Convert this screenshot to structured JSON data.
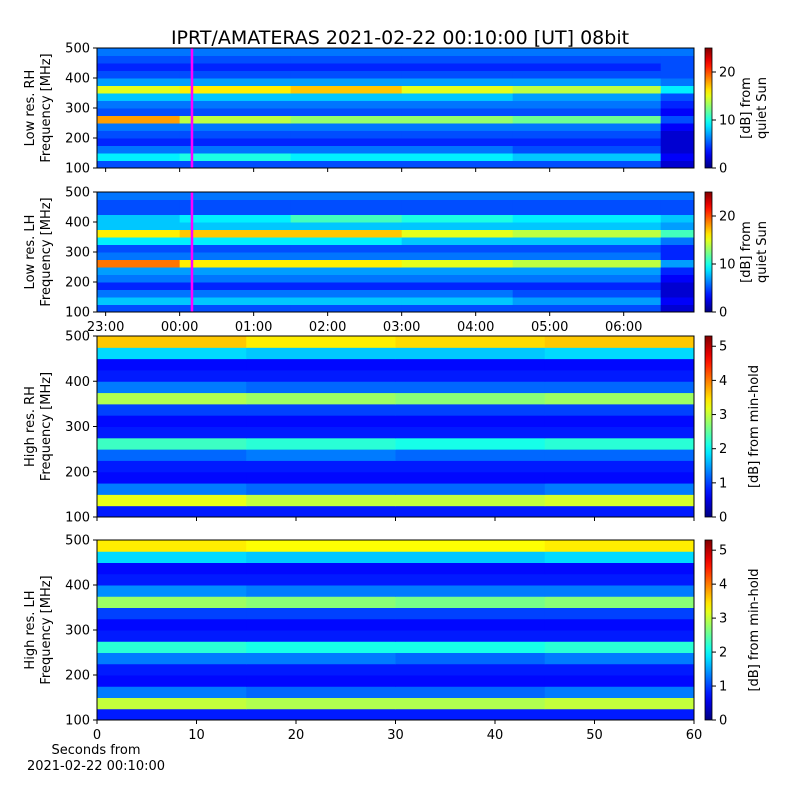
{
  "title": "IPRT/AMATERAS 2021-02-22 00:10:00 [UT]   08bit",
  "chart_data": [
    {
      "type": "heatmap",
      "ylabel": "Low res. RH\nFrequency [MHz]",
      "colorbar_label": "[dB] from\nquiet Sun",
      "colormap": "jet",
      "time_axis": true,
      "xlim": [
        "22:53",
        "06:57"
      ],
      "xticks": [
        "23:00",
        "00:00",
        "01:00",
        "02:00",
        "03:00",
        "04:00",
        "05:00",
        "06:00"
      ],
      "show_xtick_labels": false,
      "ylim": [
        100,
        500
      ],
      "yticks": [
        100,
        200,
        300,
        400,
        500
      ],
      "clim": [
        0,
        25
      ],
      "cticks": [
        0,
        10,
        20
      ],
      "marker_x": "00:10",
      "marker_color": "#ff00ff",
      "x_edges": [
        "22:53",
        "00:00",
        "01:30",
        "03:00",
        "04:30",
        "06:30",
        "06:57"
      ],
      "y_edges": [
        100,
        125,
        150,
        175,
        200,
        225,
        250,
        275,
        300,
        325,
        350,
        375,
        400,
        425,
        450,
        475,
        500
      ],
      "values": [
        [
          5,
          5,
          5,
          5,
          5,
          2
        ],
        [
          9,
          10,
          9,
          9,
          8,
          3
        ],
        [
          6,
          6,
          6,
          6,
          5,
          2
        ],
        [
          4,
          4,
          4,
          4,
          4,
          2
        ],
        [
          5,
          5,
          5,
          5,
          5,
          2
        ],
        [
          6,
          6,
          6,
          6,
          6,
          3
        ],
        [
          18,
          14,
          13,
          13,
          12,
          5
        ],
        [
          5,
          5,
          5,
          5,
          5,
          3
        ],
        [
          6,
          6,
          6,
          6,
          6,
          4
        ],
        [
          8,
          8,
          8,
          8,
          7,
          5
        ],
        [
          15,
          16,
          17,
          15,
          14,
          9
        ],
        [
          7,
          7,
          7,
          7,
          7,
          6
        ],
        [
          5,
          5,
          5,
          5,
          5,
          5
        ],
        [
          4,
          4,
          4,
          4,
          4,
          5
        ],
        [
          5,
          5,
          5,
          5,
          5,
          5
        ],
        [
          6,
          6,
          6,
          6,
          6,
          6
        ]
      ]
    },
    {
      "type": "heatmap",
      "ylabel": "Low res. LH\nFrequency [MHz]",
      "colorbar_label": "[dB] from\nquiet Sun",
      "colormap": "jet",
      "time_axis": true,
      "xlim": [
        "22:53",
        "06:57"
      ],
      "xticks": [
        "23:00",
        "00:00",
        "01:00",
        "02:00",
        "03:00",
        "04:00",
        "05:00",
        "06:00"
      ],
      "show_xtick_labels": true,
      "ylim": [
        100,
        500
      ],
      "yticks": [
        100,
        200,
        300,
        400,
        500
      ],
      "clim": [
        0,
        25
      ],
      "cticks": [
        0,
        10,
        20
      ],
      "marker_x": "00:10",
      "marker_color": "#ff00ff",
      "x_edges": [
        "22:53",
        "00:00",
        "01:30",
        "03:00",
        "04:30",
        "06:30",
        "06:57"
      ],
      "y_edges": [
        100,
        125,
        150,
        175,
        200,
        225,
        250,
        275,
        300,
        325,
        350,
        375,
        400,
        425,
        450,
        475,
        500
      ],
      "values": [
        [
          5,
          5,
          5,
          5,
          5,
          2
        ],
        [
          8,
          8,
          8,
          8,
          7,
          3
        ],
        [
          6,
          6,
          6,
          6,
          5,
          2
        ],
        [
          4,
          4,
          4,
          4,
          4,
          2
        ],
        [
          6,
          6,
          6,
          6,
          6,
          3
        ],
        [
          7,
          7,
          7,
          7,
          7,
          4
        ],
        [
          19,
          16,
          16,
          15,
          14,
          7
        ],
        [
          6,
          6,
          6,
          6,
          6,
          4
        ],
        [
          5,
          5,
          5,
          5,
          5,
          4
        ],
        [
          9,
          9,
          9,
          8,
          8,
          6
        ],
        [
          16,
          17,
          17,
          15,
          14,
          11
        ],
        [
          8,
          8,
          8,
          8,
          8,
          7
        ],
        [
          8,
          9,
          11,
          10,
          9,
          8
        ],
        [
          5,
          5,
          5,
          5,
          5,
          5
        ],
        [
          5,
          5,
          5,
          5,
          5,
          5
        ],
        [
          6,
          6,
          6,
          6,
          6,
          6
        ]
      ]
    },
    {
      "type": "heatmap",
      "ylabel": "High res. RH\nFrequency [MHz]",
      "colorbar_label": "[dB] from min-hold",
      "colormap": "jet",
      "time_axis": false,
      "xlim": [
        0,
        60
      ],
      "xticks": [
        0,
        10,
        20,
        30,
        40,
        50,
        60
      ],
      "show_xtick_labels": false,
      "ylim": [
        100,
        500
      ],
      "yticks": [
        100,
        200,
        300,
        400,
        500
      ],
      "clim": [
        0,
        5.3
      ],
      "cticks": [
        0,
        1,
        2,
        3,
        4,
        5
      ],
      "x_edges": [
        0,
        15,
        30,
        45,
        60
      ],
      "y_edges": [
        100,
        125,
        150,
        175,
        200,
        225,
        250,
        275,
        300,
        325,
        350,
        375,
        400,
        425,
        450,
        475,
        500
      ],
      "values": [
        [
          0.8,
          0.8,
          0.8,
          0.8
        ],
        [
          3.2,
          3,
          3,
          3.1
        ],
        [
          1.3,
          1.2,
          1.2,
          1.3
        ],
        [
          0.7,
          0.7,
          0.7,
          0.7
        ],
        [
          0.8,
          0.8,
          0.8,
          0.8
        ],
        [
          1.2,
          1.3,
          1.2,
          1.2
        ],
        [
          2.3,
          2.2,
          2.1,
          2.2
        ],
        [
          0.8,
          0.8,
          0.8,
          0.8
        ],
        [
          0.7,
          0.7,
          0.7,
          0.7
        ],
        [
          1,
          1,
          1,
          1
        ],
        [
          2.9,
          2.8,
          2.7,
          2.8
        ],
        [
          1.3,
          1.2,
          1.2,
          1.2
        ],
        [
          0.8,
          0.8,
          0.8,
          0.8
        ],
        [
          0.7,
          0.7,
          0.7,
          0.7
        ],
        [
          1.8,
          1.7,
          1.7,
          1.8
        ],
        [
          3.6,
          3.4,
          3.5,
          3.6
        ]
      ]
    },
    {
      "type": "heatmap",
      "ylabel": "High res. LH\nFrequency [MHz]",
      "colorbar_label": "[dB] from min-hold",
      "colormap": "jet",
      "time_axis": false,
      "xlim": [
        0,
        60
      ],
      "xticks": [
        0,
        10,
        20,
        30,
        40,
        50,
        60
      ],
      "show_xtick_labels": true,
      "xlabel": "Seconds from\n2021-02-22 00:10:00",
      "ylim": [
        100,
        500
      ],
      "yticks": [
        100,
        200,
        300,
        400,
        500
      ],
      "clim": [
        0,
        5.3
      ],
      "cticks": [
        0,
        1,
        2,
        3,
        4,
        5
      ],
      "x_edges": [
        0,
        15,
        30,
        45,
        60
      ],
      "y_edges": [
        100,
        125,
        150,
        175,
        200,
        225,
        250,
        275,
        300,
        325,
        350,
        375,
        400,
        425,
        450,
        475,
        500
      ],
      "values": [
        [
          0.8,
          0.8,
          0.8,
          0.8
        ],
        [
          3,
          2.9,
          2.9,
          3
        ],
        [
          1.3,
          1.2,
          1.2,
          1.3
        ],
        [
          0.7,
          0.7,
          0.7,
          0.7
        ],
        [
          0.8,
          0.8,
          0.8,
          0.8
        ],
        [
          1.3,
          1.3,
          1.2,
          1.3
        ],
        [
          2.2,
          2.1,
          2.1,
          2.2
        ],
        [
          0.8,
          0.8,
          0.8,
          0.8
        ],
        [
          0.7,
          0.7,
          0.7,
          0.7
        ],
        [
          1,
          1,
          1,
          1
        ],
        [
          2.8,
          2.7,
          2.6,
          2.7
        ],
        [
          1.4,
          1.3,
          1.3,
          1.3
        ],
        [
          0.8,
          0.8,
          0.8,
          0.8
        ],
        [
          0.7,
          0.7,
          0.7,
          0.7
        ],
        [
          1.8,
          1.7,
          1.7,
          1.8
        ],
        [
          3.4,
          3.3,
          3.3,
          3.4
        ]
      ]
    }
  ]
}
